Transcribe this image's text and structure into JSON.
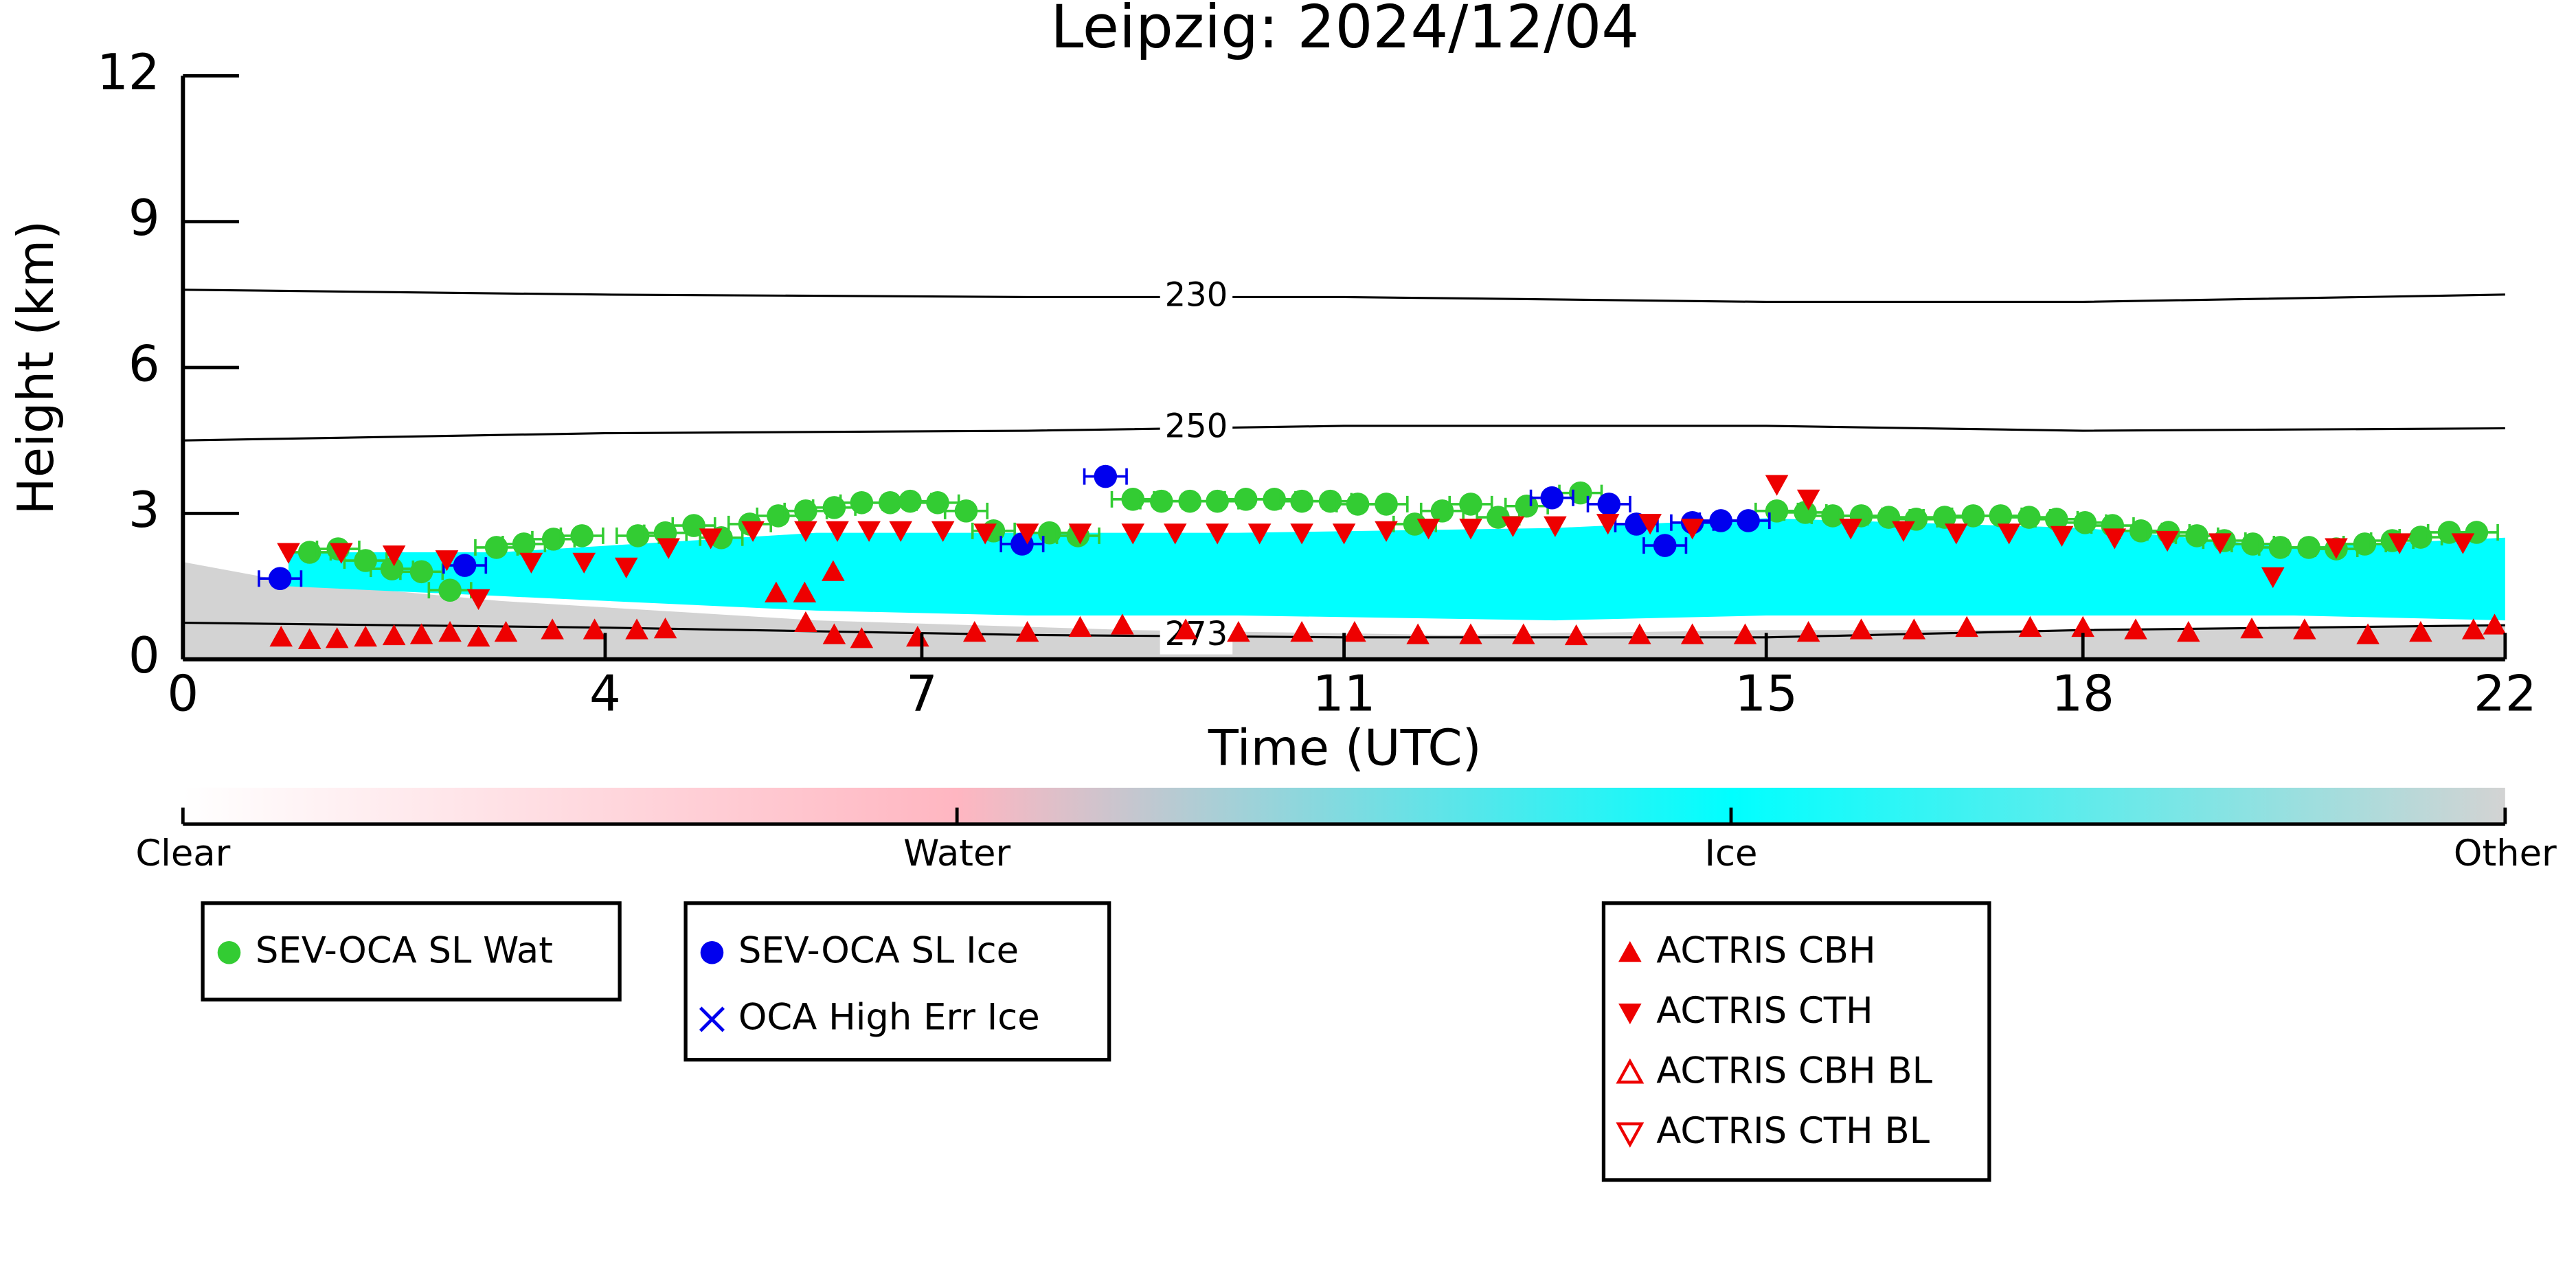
{
  "chart_data": {
    "type": "scatter",
    "title": "Leipzig: 2024/12/04",
    "xlabel": "Time (UTC)",
    "ylabel": "Height (km)",
    "xlim": [
      0,
      22
    ],
    "xticks": [
      0,
      4,
      7,
      11,
      15,
      18,
      22
    ],
    "ylim": [
      0,
      12
    ],
    "yticks": [
      0,
      3,
      6,
      9,
      12
    ],
    "areas": [
      {
        "color": "#d3d3d3",
        "x": [
          0,
          1,
          3,
          6,
          9,
          12,
          15,
          18,
          22
        ],
        "base": [
          0,
          0,
          0,
          0,
          0,
          0,
          0,
          0,
          0
        ],
        "top": [
          2.0,
          1.6,
          1.2,
          0.8,
          0.6,
          0.5,
          0.6,
          0.6,
          0.7
        ]
      },
      {
        "color": "#00ffff",
        "x": [
          1,
          3,
          6,
          8,
          10,
          13,
          15,
          18,
          20,
          22
        ],
        "base": [
          1.5,
          1.3,
          1.0,
          0.9,
          0.9,
          0.8,
          0.9,
          0.9,
          0.9,
          0.8
        ],
        "top": [
          2.2,
          2.2,
          2.6,
          2.6,
          2.6,
          2.7,
          2.9,
          2.7,
          2.3,
          2.5
        ]
      }
    ],
    "contours": [
      {
        "level": 230,
        "x": [
          0,
          4,
          8,
          11,
          15,
          18,
          22
        ],
        "values": [
          7.6,
          7.5,
          7.45,
          7.45,
          7.35,
          7.35,
          7.5
        ]
      },
      {
        "level": 250,
        "x": [
          0,
          4,
          8,
          11,
          15,
          18,
          22
        ],
        "values": [
          4.5,
          4.65,
          4.7,
          4.8,
          4.8,
          4.7,
          4.75
        ]
      },
      {
        "level": 273,
        "x": [
          0,
          4,
          8,
          11,
          15,
          18,
          22
        ],
        "values": [
          0.75,
          0.65,
          0.5,
          0.45,
          0.45,
          0.6,
          0.7
        ]
      }
    ],
    "series": [
      {
        "name": "SEV-OCA SL Wat",
        "color": "#33cc33",
        "marker": "o",
        "filled": true,
        "xerr": 0.2,
        "x": [
          1.2,
          1.47,
          1.73,
          1.98,
          2.26,
          2.53,
          2.97,
          3.23,
          3.51,
          3.78,
          4.31,
          4.57,
          4.84,
          5.1,
          5.37,
          5.64,
          5.9,
          6.17,
          6.43,
          6.7,
          6.89,
          7.15,
          7.42,
          7.68,
          8.21,
          8.48,
          9.0,
          9.27,
          9.54,
          9.8,
          10.07,
          10.34,
          10.6,
          10.87,
          11.13,
          11.4,
          11.67,
          11.93,
          12.2,
          12.46,
          12.73,
          13.24,
          15.1,
          15.37,
          15.63,
          15.9,
          16.16,
          16.42,
          16.69,
          16.96,
          17.22,
          17.49,
          17.75,
          18.02,
          18.28,
          18.55,
          18.81,
          19.08,
          19.34,
          19.61,
          19.87,
          20.14,
          20.4,
          20.67,
          20.93,
          21.2,
          21.47,
          21.73
        ],
        "values": [
          2.2,
          2.27,
          2.03,
          1.86,
          1.8,
          1.42,
          2.3,
          2.37,
          2.47,
          2.54,
          2.54,
          2.6,
          2.75,
          2.5,
          2.78,
          2.95,
          3.05,
          3.12,
          3.22,
          3.22,
          3.25,
          3.22,
          3.05,
          2.64,
          2.6,
          2.54,
          3.29,
          3.25,
          3.25,
          3.25,
          3.29,
          3.29,
          3.25,
          3.25,
          3.19,
          3.19,
          2.78,
          3.05,
          3.19,
          2.92,
          3.15,
          3.42,
          3.05,
          3.02,
          2.95,
          2.95,
          2.92,
          2.88,
          2.92,
          2.95,
          2.95,
          2.92,
          2.88,
          2.81,
          2.75,
          2.64,
          2.61,
          2.54,
          2.44,
          2.37,
          2.3,
          2.3,
          2.27,
          2.37,
          2.44,
          2.51,
          2.61,
          2.61
        ]
      },
      {
        "name": "SEV-OCA SL Ice",
        "color": "#0000ee",
        "marker": "o",
        "filled": true,
        "xerr": 0.2,
        "x": [
          0.92,
          2.67,
          7.95,
          8.74,
          12.97,
          13.51,
          13.77,
          14.04,
          14.3,
          14.57,
          14.83
        ],
        "values": [
          1.66,
          1.93,
          2.37,
          3.76,
          3.32,
          3.19,
          2.78,
          2.34,
          2.81,
          2.85,
          2.85
        ]
      },
      {
        "name": "OCA High Err Ice",
        "color": "#0000ee",
        "marker": "x",
        "filled": true,
        "x": [],
        "values": []
      },
      {
        "name": "ACTRIS CBH",
        "color": "#ee0000",
        "marker": "^",
        "filled": true,
        "x": [
          0.93,
          1.2,
          1.46,
          1.73,
          2.0,
          2.26,
          2.53,
          2.8,
          3.06,
          3.5,
          3.9,
          4.3,
          4.57,
          5.9,
          6.17,
          6.43,
          6.96,
          7.5,
          8.0,
          8.5,
          8.9,
          9.5,
          10.0,
          10.6,
          11.1,
          11.7,
          12.2,
          12.7,
          13.2,
          13.8,
          14.3,
          14.8,
          15.4,
          15.9,
          16.4,
          16.9,
          17.5,
          18.0,
          18.5,
          19.0,
          19.6,
          20.1,
          20.7,
          21.2,
          21.7,
          21.9,
          5.62,
          5.89,
          6.16
        ],
        "values": [
          0.45,
          0.4,
          0.42,
          0.45,
          0.48,
          0.5,
          0.55,
          0.45,
          0.55,
          0.6,
          0.6,
          0.6,
          0.62,
          0.75,
          0.5,
          0.42,
          0.45,
          0.55,
          0.55,
          0.65,
          0.7,
          0.6,
          0.55,
          0.55,
          0.55,
          0.5,
          0.5,
          0.5,
          0.48,
          0.5,
          0.5,
          0.5,
          0.55,
          0.6,
          0.6,
          0.65,
          0.65,
          0.65,
          0.6,
          0.55,
          0.62,
          0.6,
          0.5,
          0.55,
          0.6,
          0.7,
          1.36,
          1.36,
          1.8
        ]
      },
      {
        "name": "ACTRIS CTH",
        "color": "#ee0000",
        "marker": "v",
        "filled": true,
        "x": [
          1.0,
          1.5,
          2.0,
          2.5,
          2.8,
          3.3,
          3.8,
          4.2,
          4.6,
          5.0,
          5.4,
          5.9,
          6.2,
          6.5,
          6.8,
          7.2,
          7.6,
          8.0,
          8.5,
          9.0,
          9.4,
          9.8,
          10.2,
          10.6,
          11.0,
          11.4,
          11.8,
          12.2,
          12.6,
          13.0,
          13.5,
          13.9,
          14.3,
          15.1,
          15.4,
          15.8,
          16.3,
          16.8,
          17.3,
          17.8,
          18.3,
          18.8,
          19.3,
          19.8,
          20.4,
          21.0,
          21.6
        ],
        "values": [
          2.2,
          2.2,
          2.15,
          2.05,
          1.25,
          2.0,
          2.0,
          1.9,
          2.3,
          2.5,
          2.65,
          2.65,
          2.65,
          2.65,
          2.65,
          2.65,
          2.6,
          2.6,
          2.6,
          2.6,
          2.6,
          2.6,
          2.6,
          2.6,
          2.6,
          2.65,
          2.7,
          2.7,
          2.75,
          2.75,
          2.8,
          2.8,
          2.7,
          3.6,
          3.3,
          2.7,
          2.65,
          2.6,
          2.6,
          2.55,
          2.5,
          2.45,
          2.4,
          1.7,
          2.3,
          2.4,
          2.4
        ]
      },
      {
        "name": "ACTRIS CBH BL",
        "color": "#ee0000",
        "marker": "^",
        "filled": false,
        "x": [],
        "values": []
      },
      {
        "name": "ACTRIS CTH BL",
        "color": "#ee0000",
        "marker": "v",
        "filled": false,
        "x": [],
        "values": []
      }
    ],
    "colorbar": {
      "labels": [
        "Clear",
        "Water",
        "Ice",
        "Other"
      ],
      "colors": [
        "#ffffff",
        "#ffb6c1",
        "#00ffff",
        "#d3d3d3"
      ]
    }
  }
}
